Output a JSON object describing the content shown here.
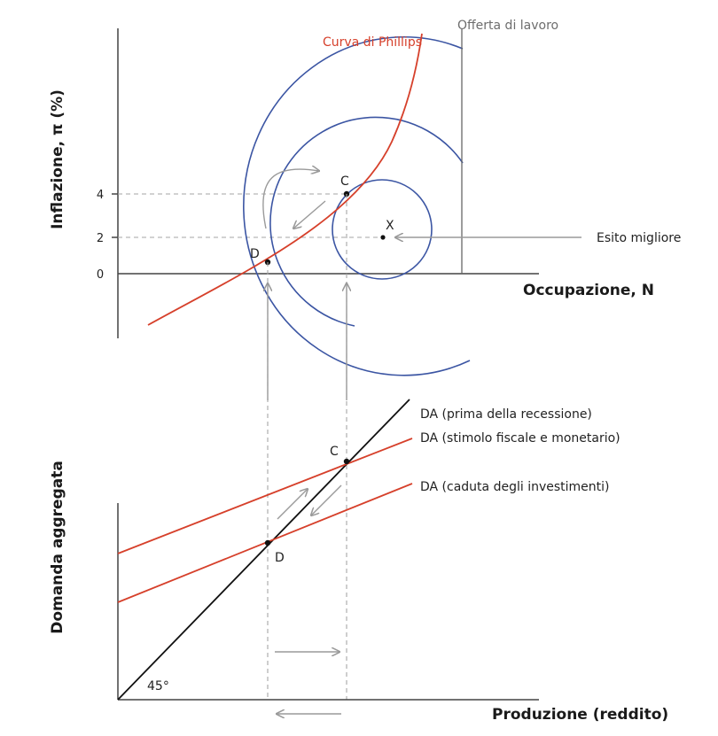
{
  "top_chart": {
    "y_axis_title": "Inflazione, π (%)",
    "x_axis_title": "Occupazione, N",
    "y_ticks": [
      "4",
      "2",
      "0"
    ],
    "curve_label": "Curva di Phillips",
    "labor_supply_label": "Offerta di lavoro",
    "best_outcome_label": "Esito migliore",
    "point_c": "C",
    "point_d": "D",
    "point_x": "X"
  },
  "bottom_chart": {
    "y_axis_title": "Domanda aggregata",
    "x_axis_title": "Produzione (reddito)",
    "line_before": "DA (prima della recessione)",
    "line_stimulus": "DA (stimolo fiscale e monetario)",
    "line_investment": "DA (caduta degli investimenti)",
    "angle_label": "45°",
    "point_c": "C",
    "point_d": "D"
  },
  "colors": {
    "phillips_curve": "#d6402b",
    "da_lines": "#d6402b",
    "iso_circles": "#3b55a3",
    "line_45": "#111111",
    "guides": "#a6a6a6"
  }
}
